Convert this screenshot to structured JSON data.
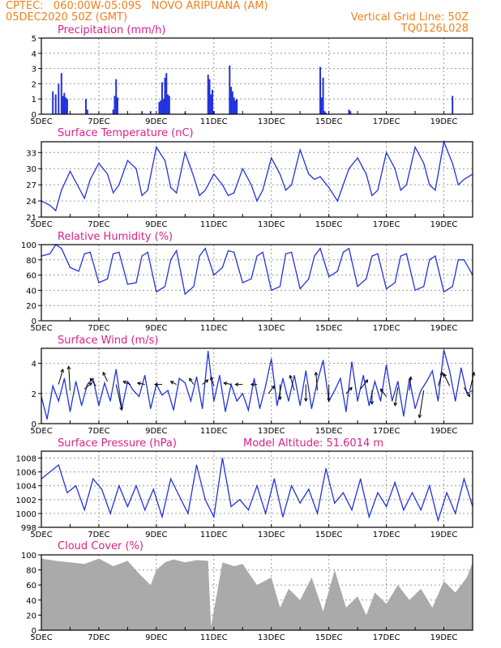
{
  "header": {
    "line1_left": "CPTEC:   060:00W-05:09S   NOVO ARIPUANA (AM)",
    "line2_left": "05DEC2020 50Z (GMT)",
    "line2_right": "Vertical Grid Line: 50Z",
    "line3_right": "TQ0126L028"
  },
  "colors": {
    "series": "#2233dd",
    "title": "#d8208a",
    "header": "#f0801c",
    "cloud": "#aaaaaa"
  },
  "chart_data": [
    {
      "id": "precip",
      "type": "bar",
      "title": "Precipitation (mm/h)",
      "ylim": [
        0,
        5
      ],
      "yticks": [
        0,
        1,
        2,
        3,
        4,
        5
      ],
      "x_start_day": 5,
      "x_end_day": 20,
      "x_tick_labels": [
        "5DEC",
        "7DEC",
        "9DEC",
        "11DEC",
        "13DEC",
        "15DEC",
        "17DEC",
        "19DEC"
      ],
      "x": [
        5.4,
        5.5,
        5.6,
        5.7,
        5.75,
        5.8,
        5.85,
        5.9,
        6.55,
        6.6,
        7.5,
        7.55,
        7.6,
        7.65,
        8.5,
        8.8,
        9.1,
        9.15,
        9.2,
        9.25,
        9.3,
        9.35,
        9.4,
        9.45,
        10.0,
        10.8,
        10.85,
        10.9,
        10.95,
        11.0,
        11.55,
        11.6,
        11.65,
        11.7,
        11.75,
        11.8,
        14.7,
        14.75,
        14.8,
        14.85,
        14.9,
        15.7,
        15.75,
        19.3
      ],
      "values": [
        1.5,
        1.3,
        2.0,
        2.7,
        1.2,
        1.4,
        1.1,
        1.0,
        1.0,
        0.3,
        0.3,
        1.2,
        2.3,
        1.1,
        0.2,
        0.2,
        0.8,
        0.9,
        2.1,
        1.0,
        2.4,
        2.7,
        1.3,
        1.2,
        0.1,
        2.6,
        2.3,
        1.3,
        1.6,
        0.2,
        3.2,
        1.8,
        1.5,
        1.1,
        0.9,
        1.0,
        3.1,
        1.1,
        2.4,
        0.2,
        0.1,
        0.3,
        0.2,
        1.2
      ]
    },
    {
      "id": "temp",
      "type": "line",
      "title": "Surface Temperature (nC)",
      "ylim": [
        21,
        35
      ],
      "yticks": [
        21,
        24,
        27,
        30,
        33
      ],
      "x_start_day": 5,
      "x_end_day": 20,
      "x_tick_labels": [
        "5DEC",
        "7DEC",
        "9DEC",
        "11DEC",
        "13DEC",
        "15DEC",
        "17DEC",
        "19DEC"
      ],
      "x": [
        5,
        5.3,
        5.5,
        5.7,
        6,
        6.3,
        6.5,
        6.7,
        7,
        7.3,
        7.5,
        7.7,
        8,
        8.3,
        8.5,
        8.7,
        9,
        9.3,
        9.5,
        9.7,
        10,
        10.3,
        10.5,
        10.7,
        11,
        11.3,
        11.5,
        11.7,
        12,
        12.3,
        12.5,
        12.7,
        13,
        13.3,
        13.5,
        13.7,
        14,
        14.3,
        14.5,
        14.7,
        15,
        15.3,
        15.5,
        15.7,
        16,
        16.3,
        16.5,
        16.7,
        17,
        17.3,
        17.5,
        17.7,
        18,
        18.3,
        18.5,
        18.7,
        19,
        19.3,
        19.5,
        19.7,
        20
      ],
      "values": [
        24,
        23.2,
        22.2,
        26,
        29.5,
        26.5,
        24.5,
        28,
        31,
        29,
        25.5,
        27,
        31.5,
        30,
        25,
        26,
        34,
        31.5,
        26.5,
        25.5,
        33,
        28.5,
        25,
        26,
        29,
        27,
        25,
        25.5,
        30,
        27,
        24,
        26,
        32,
        29,
        26,
        27,
        33.5,
        29,
        28,
        28.5,
        26.5,
        24,
        27,
        30,
        32,
        29,
        25,
        26,
        33,
        30,
        26,
        27,
        34,
        31,
        27,
        26,
        35,
        31,
        27,
        28,
        29
      ]
    },
    {
      "id": "rh",
      "type": "line",
      "title": "Relative Humidity (%)",
      "ylim": [
        0,
        100
      ],
      "yticks": [
        0,
        20,
        40,
        60,
        80,
        100
      ],
      "x_start_day": 5,
      "x_end_day": 20,
      "x_tick_labels": [
        "5DEC",
        "7DEC",
        "9DEC",
        "11DEC",
        "13DEC",
        "15DEC",
        "17DEC",
        "19DEC"
      ],
      "x": [
        5,
        5.3,
        5.5,
        5.7,
        6,
        6.3,
        6.5,
        6.7,
        7,
        7.3,
        7.5,
        7.7,
        8,
        8.3,
        8.5,
        8.7,
        9,
        9.3,
        9.5,
        9.7,
        10,
        10.3,
        10.5,
        10.7,
        11,
        11.3,
        11.5,
        11.7,
        12,
        12.3,
        12.5,
        12.7,
        13,
        13.3,
        13.5,
        13.7,
        14,
        14.3,
        14.5,
        14.7,
        15,
        15.3,
        15.5,
        15.7,
        16,
        16.3,
        16.5,
        16.7,
        17,
        17.3,
        17.5,
        17.7,
        18,
        18.3,
        18.5,
        18.7,
        19,
        19.3,
        19.5,
        19.7,
        20
      ],
      "values": [
        85,
        88,
        100,
        95,
        70,
        65,
        88,
        90,
        50,
        55,
        88,
        90,
        48,
        50,
        85,
        90,
        38,
        45,
        80,
        92,
        35,
        45,
        85,
        95,
        60,
        70,
        92,
        90,
        50,
        55,
        85,
        90,
        40,
        45,
        88,
        90,
        42,
        55,
        85,
        95,
        58,
        65,
        90,
        95,
        45,
        55,
        85,
        88,
        42,
        50,
        85,
        88,
        40,
        45,
        80,
        85,
        38,
        45,
        80,
        80,
        60
      ]
    },
    {
      "id": "wind",
      "type": "line",
      "title": "Surface Wind (m/s)",
      "ylim": [
        0,
        5
      ],
      "yticks": [
        0,
        2,
        4
      ],
      "x_start_day": 5,
      "x_end_day": 20,
      "x_tick_labels": [
        "5DEC",
        "7DEC",
        "9DEC",
        "11DEC",
        "13DEC",
        "15DEC",
        "17DEC",
        "19DEC"
      ],
      "x": [
        5,
        5.2,
        5.4,
        5.6,
        5.8,
        6,
        6.2,
        6.4,
        6.6,
        6.8,
        7,
        7.2,
        7.4,
        7.6,
        7.8,
        8,
        8.2,
        8.4,
        8.6,
        8.8,
        9,
        9.2,
        9.4,
        9.6,
        9.8,
        10,
        10.2,
        10.4,
        10.6,
        10.8,
        11,
        11.2,
        11.4,
        11.6,
        11.8,
        12,
        12.2,
        12.4,
        12.6,
        12.8,
        13,
        13.2,
        13.4,
        13.6,
        13.8,
        14,
        14.2,
        14.4,
        14.6,
        14.8,
        15,
        15.2,
        15.4,
        15.6,
        15.8,
        16,
        16.2,
        16.4,
        16.6,
        16.8,
        17,
        17.2,
        17.4,
        17.6,
        17.8,
        18,
        18.2,
        18.4,
        18.6,
        18.8,
        19,
        19.2,
        19.4,
        19.6,
        19.8,
        20
      ],
      "values": [
        1.8,
        0.3,
        2.5,
        1.5,
        3.0,
        0.8,
        2.8,
        1.2,
        2.6,
        3.0,
        1.2,
        2.7,
        1.5,
        3.6,
        1.0,
        2.8,
        2.2,
        1.8,
        3.2,
        1.0,
        2.6,
        1.9,
        2.2,
        0.9,
        3.0,
        2.7,
        1.5,
        3.1,
        1.0,
        4.8,
        1.5,
        3.2,
        0.8,
        2.6,
        1.5,
        2.0,
        0.9,
        3.0,
        1.0,
        2.5,
        4.3,
        1.2,
        3.0,
        1.5,
        3.2,
        1.2,
        3.5,
        1.0,
        2.8,
        4.2,
        1.5,
        2.2,
        3.0,
        0.8,
        4.1,
        1.5,
        3.2,
        1.2,
        2.8,
        1.5,
        3.9,
        1.5,
        2.8,
        0.5,
        3.0,
        1.0,
        2.2,
        2.8,
        3.5,
        1.5,
        4.9,
        3.5,
        1.5,
        3.7,
        2.0,
        2.2
      ],
      "arrows": [
        {
          "x": 5.6,
          "y": 2.6,
          "dx": 0.3,
          "dy": 1.0
        },
        {
          "x": 6.0,
          "y": 2.2,
          "dx": -0.1,
          "dy": 1.6
        },
        {
          "x": 6.5,
          "y": 2.3,
          "dx": 0.5,
          "dy": 0.4
        },
        {
          "x": 6.9,
          "y": 2.5,
          "dx": -0.4,
          "dy": 0.5
        },
        {
          "x": 7.3,
          "y": 2.8,
          "dx": -0.3,
          "dy": 0.6
        },
        {
          "x": 7.6,
          "y": 2.6,
          "dx": 0.4,
          "dy": -1.7
        },
        {
          "x": 8.1,
          "y": 2.6,
          "dx": -0.5,
          "dy": 0.2
        },
        {
          "x": 8.6,
          "y": 2.6,
          "dx": -0.5,
          "dy": 0.1
        },
        {
          "x": 9.2,
          "y": 2.6,
          "dx": -0.5,
          "dy": 0.0
        },
        {
          "x": 9.7,
          "y": 2.6,
          "dx": -0.4,
          "dy": 0.2
        },
        {
          "x": 10.3,
          "y": 2.6,
          "dx": -0.3,
          "dy": 0.4
        },
        {
          "x": 10.6,
          "y": 2.6,
          "dx": 0.4,
          "dy": 0.3
        },
        {
          "x": 11.0,
          "y": 2.5,
          "dx": -0.2,
          "dy": 0.6
        },
        {
          "x": 11.6,
          "y": 2.6,
          "dx": -0.5,
          "dy": 0.1
        },
        {
          "x": 12.0,
          "y": 2.6,
          "dx": -0.5,
          "dy": 0.0
        },
        {
          "x": 12.5,
          "y": 2.6,
          "dx": -0.4,
          "dy": 0.0
        },
        {
          "x": 12.9,
          "y": 2.0,
          "dx": 0.4,
          "dy": 0.5
        },
        {
          "x": 13.3,
          "y": 2.6,
          "dx": 0.0,
          "dy": -1.0
        },
        {
          "x": 13.8,
          "y": 2.2,
          "dx": -0.3,
          "dy": 1.0
        },
        {
          "x": 14.2,
          "y": 2.6,
          "dx": 0.0,
          "dy": -1.1
        },
        {
          "x": 14.6,
          "y": 2.2,
          "dx": -0.1,
          "dy": 1.2
        },
        {
          "x": 15.0,
          "y": 2.6,
          "dx": 0.0,
          "dy": -1.1
        },
        {
          "x": 15.6,
          "y": 2.0,
          "dx": 0.4,
          "dy": 0.4
        },
        {
          "x": 16.1,
          "y": 2.3,
          "dx": 0.5,
          "dy": 0.6
        },
        {
          "x": 16.5,
          "y": 2.2,
          "dx": 0.0,
          "dy": -0.9
        },
        {
          "x": 17.0,
          "y": 1.8,
          "dx": -0.4,
          "dy": 0.5
        },
        {
          "x": 17.4,
          "y": 2.4,
          "dx": -0.2,
          "dy": -1.2
        },
        {
          "x": 17.8,
          "y": 2.2,
          "dx": 0.1,
          "dy": 0.9
        },
        {
          "x": 18.3,
          "y": 2.2,
          "dx": -0.3,
          "dy": -1.8
        },
        {
          "x": 18.8,
          "y": 2.5,
          "dx": 0.3,
          "dy": 0.9
        },
        {
          "x": 19.2,
          "y": 2.5,
          "dx": -0.4,
          "dy": 0.8
        },
        {
          "x": 19.7,
          "y": 2.4,
          "dx": 0.4,
          "dy": -0.6
        },
        {
          "x": 19.9,
          "y": 2.2,
          "dx": 0.3,
          "dy": 1.2
        }
      ]
    },
    {
      "id": "press",
      "type": "line",
      "title": "Surface Pressure (hPa)",
      "extra_label": "Model Altitude: 51.6014 m",
      "ylim": [
        998,
        1009
      ],
      "yticks": [
        998,
        1000,
        1002,
        1004,
        1006,
        1008
      ],
      "x_start_day": 5,
      "x_end_day": 20,
      "x_tick_labels": [
        "5DEC",
        "7DEC",
        "9DEC",
        "11DEC",
        "13DEC",
        "15DEC",
        "17DEC",
        "19DEC"
      ],
      "x": [
        5,
        5.3,
        5.6,
        5.9,
        6.2,
        6.5,
        6.8,
        7.1,
        7.4,
        7.7,
        8,
        8.3,
        8.6,
        8.9,
        9.2,
        9.5,
        9.8,
        10.1,
        10.4,
        10.7,
        11,
        11.3,
        11.6,
        11.9,
        12.2,
        12.5,
        12.8,
        13.1,
        13.4,
        13.7,
        14,
        14.3,
        14.6,
        14.9,
        15.2,
        15.5,
        15.8,
        16.1,
        16.4,
        16.7,
        17,
        17.3,
        17.6,
        17.9,
        18.2,
        18.5,
        18.8,
        19.1,
        19.4,
        19.7,
        20
      ],
      "values": [
        1005,
        1006,
        1007,
        1003,
        1004,
        1000.5,
        1005,
        1003.5,
        1000,
        1004,
        1001,
        1004,
        1000.5,
        1003.5,
        999.5,
        1005,
        1002.5,
        1000,
        1007,
        1002,
        999.5,
        1008,
        1001,
        1002,
        1000.5,
        1004,
        1000,
        1005,
        999.5,
        1004,
        1001.5,
        1003.5,
        1000,
        1006.5,
        1001.5,
        1003,
        1000.5,
        1005,
        999.5,
        1003,
        1001,
        1004.5,
        1000.5,
        1003,
        1000.5,
        1004,
        999,
        1003,
        1000,
        1005,
        1001
      ]
    },
    {
      "id": "cloud",
      "type": "area",
      "title": "Cloud Cover (%)",
      "ylim": [
        0,
        100
      ],
      "yticks": [
        0,
        20,
        40,
        60,
        80,
        100
      ],
      "x_start_day": 5,
      "x_end_day": 20,
      "x_tick_labels": [
        "5DEC",
        "7DEC",
        "9DEC",
        "11DEC",
        "13DEC",
        "15DEC",
        "17DEC",
        "19DEC"
      ],
      "x": [
        5,
        5.5,
        6,
        6.5,
        7,
        7.5,
        8,
        8.4,
        8.8,
        9.0,
        9.3,
        9.6,
        10,
        10.4,
        10.8,
        10.9,
        11.3,
        11.7,
        12,
        12.5,
        13,
        13.3,
        13.6,
        14,
        14.4,
        14.8,
        15.2,
        15.6,
        16,
        16.3,
        16.6,
        17,
        17.4,
        17.8,
        18.2,
        18.6,
        19,
        19.4,
        19.8,
        20
      ],
      "values": [
        95,
        92,
        90,
        88,
        95,
        85,
        92,
        75,
        60,
        80,
        90,
        94,
        90,
        93,
        92,
        5,
        90,
        85,
        88,
        60,
        70,
        30,
        55,
        40,
        70,
        25,
        80,
        30,
        45,
        20,
        50,
        35,
        60,
        40,
        55,
        30,
        65,
        50,
        70,
        90
      ]
    }
  ]
}
